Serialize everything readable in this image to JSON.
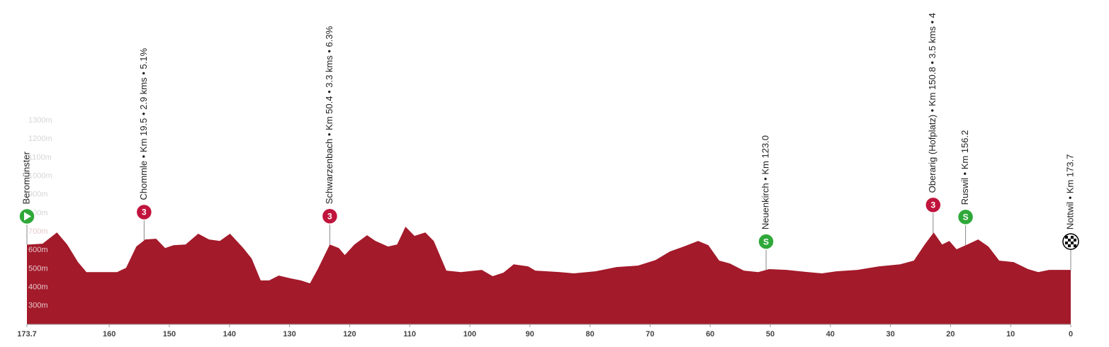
{
  "chart_data": {
    "type": "area",
    "color": "#a31a2a",
    "x": [
      173.7,
      171.1,
      168.7,
      167.0,
      165.2,
      163.8,
      161.7,
      158.7,
      157.2,
      155.5,
      154.0,
      152.2,
      150.7,
      149.3,
      147.3,
      145.2,
      143.4,
      141.6,
      139.9,
      137.7,
      136.3,
      134.8,
      133.4,
      131.8,
      129.8,
      128.1,
      126.6,
      125.3,
      123.3,
      121.8,
      120.8,
      119.2,
      117.1,
      115.7,
      113.6,
      112.1,
      110.7,
      109.2,
      107.4,
      106.0,
      103.9,
      101.5,
      98.0,
      96.2,
      94.4,
      92.7,
      90.3,
      89.1,
      85.0,
      82.7,
      79.1,
      75.6,
      72.0,
      69.1,
      66.7,
      64.4,
      62.0,
      60.3,
      58.5,
      56.7,
      54.4,
      52.0,
      50.2,
      47.3,
      43.7,
      41.4,
      39.0,
      35.5,
      31.9,
      28.4,
      26.1,
      24.3,
      22.8,
      21.4,
      20.2,
      19.0,
      17.2,
      15.4,
      13.7,
      11.9,
      9.5,
      7.1,
      5.4,
      3.6,
      0
    ],
    "values": [
      630,
      635,
      696,
      631,
      536,
      482,
      482,
      482,
      505,
      620,
      658,
      662,
      612,
      627,
      631,
      689,
      658,
      650,
      689,
      612,
      555,
      437,
      437,
      463,
      448,
      437,
      421,
      498,
      631,
      612,
      574,
      631,
      681,
      650,
      620,
      631,
      727,
      677,
      696,
      650,
      490,
      482,
      494,
      460,
      479,
      524,
      513,
      490,
      482,
      475,
      486,
      509,
      517,
      547,
      593,
      620,
      650,
      627,
      544,
      528,
      490,
      482,
      498,
      494,
      482,
      475,
      486,
      494,
      513,
      524,
      544,
      631,
      696,
      631,
      650,
      605,
      631,
      658,
      620,
      544,
      536,
      498,
      482,
      494,
      494
    ],
    "xlim": [
      173.7,
      0
    ],
    "xticks": [
      173.7,
      160,
      150,
      140,
      130,
      120,
      110,
      100,
      90,
      80,
      70,
      60,
      50,
      40,
      30,
      20,
      10,
      0
    ],
    "ylim": [
      200,
      1400
    ],
    "yticks": [
      {
        "value": 300,
        "label": "300m"
      },
      {
        "value": 400,
        "label": "400m"
      },
      {
        "value": 500,
        "label": "500m"
      },
      {
        "value": 600,
        "label": "600m"
      },
      {
        "value": 700,
        "label": "700m"
      },
      {
        "value": 800,
        "label": "800m"
      },
      {
        "value": 900,
        "label": "900m"
      },
      {
        "value": 1000,
        "label": "1000m"
      },
      {
        "value": 1100,
        "label": "1100m"
      },
      {
        "value": 1200,
        "label": "1200m"
      },
      {
        "value": 1300,
        "label": "1300m"
      }
    ],
    "markers": [
      {
        "label": "Beromünster",
        "x": 173.7,
        "kind": "start"
      },
      {
        "label": "Chommle • Km 19.5 • 2.9 kms • 5.1%",
        "x": 154.2,
        "kind": "climb",
        "icon": "3"
      },
      {
        "label": "Schwarzenbach • Km 50.4 • 3.3 kms • 6.3%",
        "x": 123.3,
        "kind": "climb",
        "icon": "3"
      },
      {
        "label": "Neuenkirch • Km 123.0",
        "x": 50.7,
        "kind": "sprint",
        "icon": "S"
      },
      {
        "label": "Oberarig (Hofplatz) • Km 150.8 • 3.5 kms • 4",
        "x": 22.9,
        "kind": "climb",
        "icon": "3"
      },
      {
        "label": "Ruswil • Km 156.2",
        "x": 17.5,
        "kind": "sprint",
        "icon": "S"
      },
      {
        "label": "Nottwil • Km 173.7",
        "x": 0,
        "kind": "finish"
      }
    ]
  }
}
